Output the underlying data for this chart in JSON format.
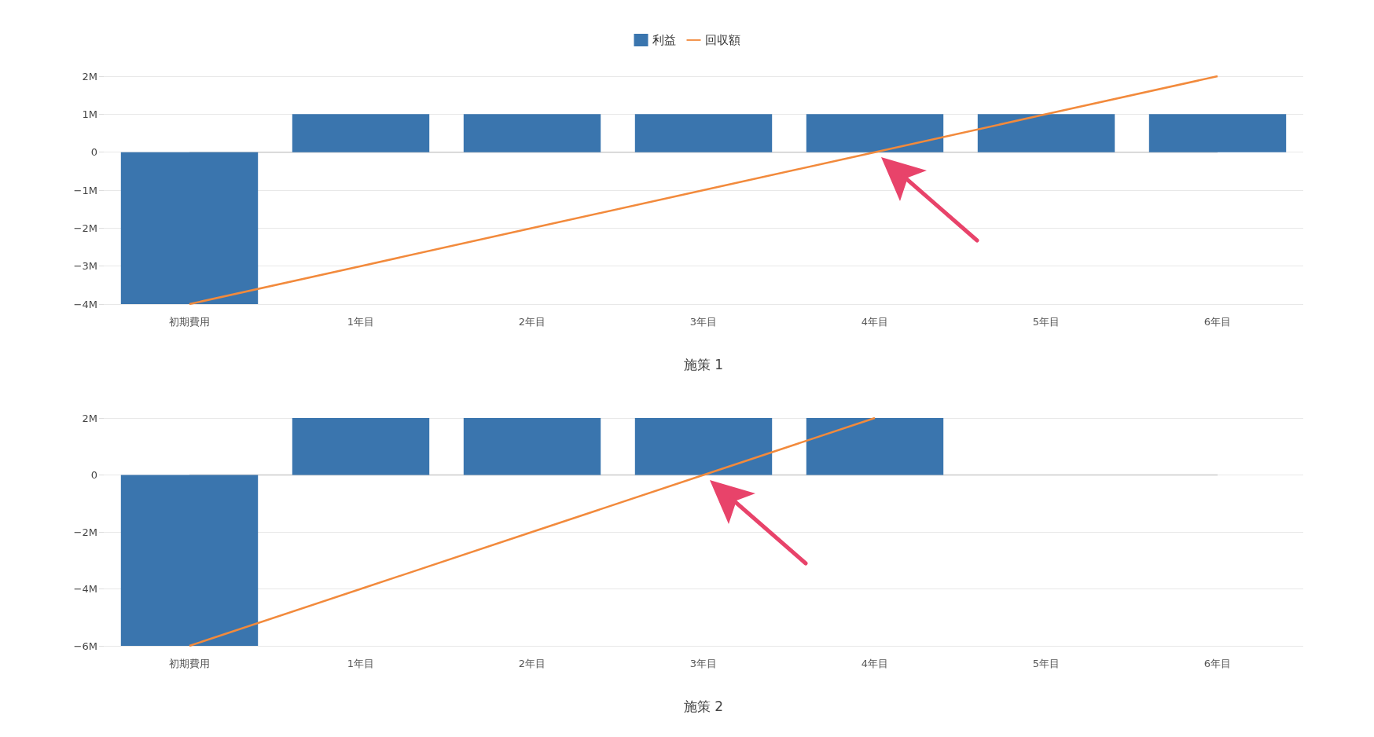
{
  "chart_data": [
    {
      "type": "bar",
      "xlabel": "施策 1",
      "categories": [
        "初期費用",
        "1年目",
        "2年目",
        "3年目",
        "4年目",
        "5年目",
        "6年目"
      ],
      "series": [
        {
          "name": "利益",
          "color": "#3a75ae",
          "values": [
            -4000000,
            1000000,
            1000000,
            1000000,
            1000000,
            1000000,
            1000000
          ]
        },
        {
          "name": "回収額",
          "type": "line",
          "color": "#f28a3c",
          "values": [
            -4000000,
            -3000000,
            -2000000,
            -1000000,
            0,
            1000000,
            2000000
          ]
        }
      ],
      "ylim": [
        -4000000,
        2000000
      ],
      "yticks": [
        {
          "value": -4000000,
          "label": "−4M"
        },
        {
          "value": -3000000,
          "label": "−3M"
        },
        {
          "value": -2000000,
          "label": "−2M"
        },
        {
          "value": -1000000,
          "label": "−1M"
        },
        0,
        {
          "value": 1000000,
          "label": "1M"
        },
        {
          "value": 2000000,
          "label": "2M"
        }
      ],
      "grid": "y",
      "legend": "top"
    },
    {
      "type": "bar",
      "xlabel": "施策 2",
      "categories": [
        "初期費用",
        "1年目",
        "2年目",
        "3年目",
        "4年目",
        "5年目",
        "6年目"
      ],
      "series": [
        {
          "color": "#3a75ae",
          "values": [
            -6000000,
            2000000,
            2000000,
            2000000,
            2000000,
            null,
            null
          ]
        },
        {
          "type": "line",
          "color": "#f28a3c",
          "values": [
            -6000000,
            -4000000,
            -2000000,
            0,
            2000000,
            null,
            null
          ]
        }
      ],
      "ylim": [
        -6000000,
        2000000
      ],
      "yticks": [
        {
          "value": -6000000,
          "label": "−6M"
        },
        {
          "value": -4000000,
          "label": "−4M"
        },
        {
          "value": -2000000,
          "label": "−2M"
        },
        0,
        {
          "value": 2000000,
          "label": "2M"
        }
      ],
      "grid": "y"
    }
  ]
}
